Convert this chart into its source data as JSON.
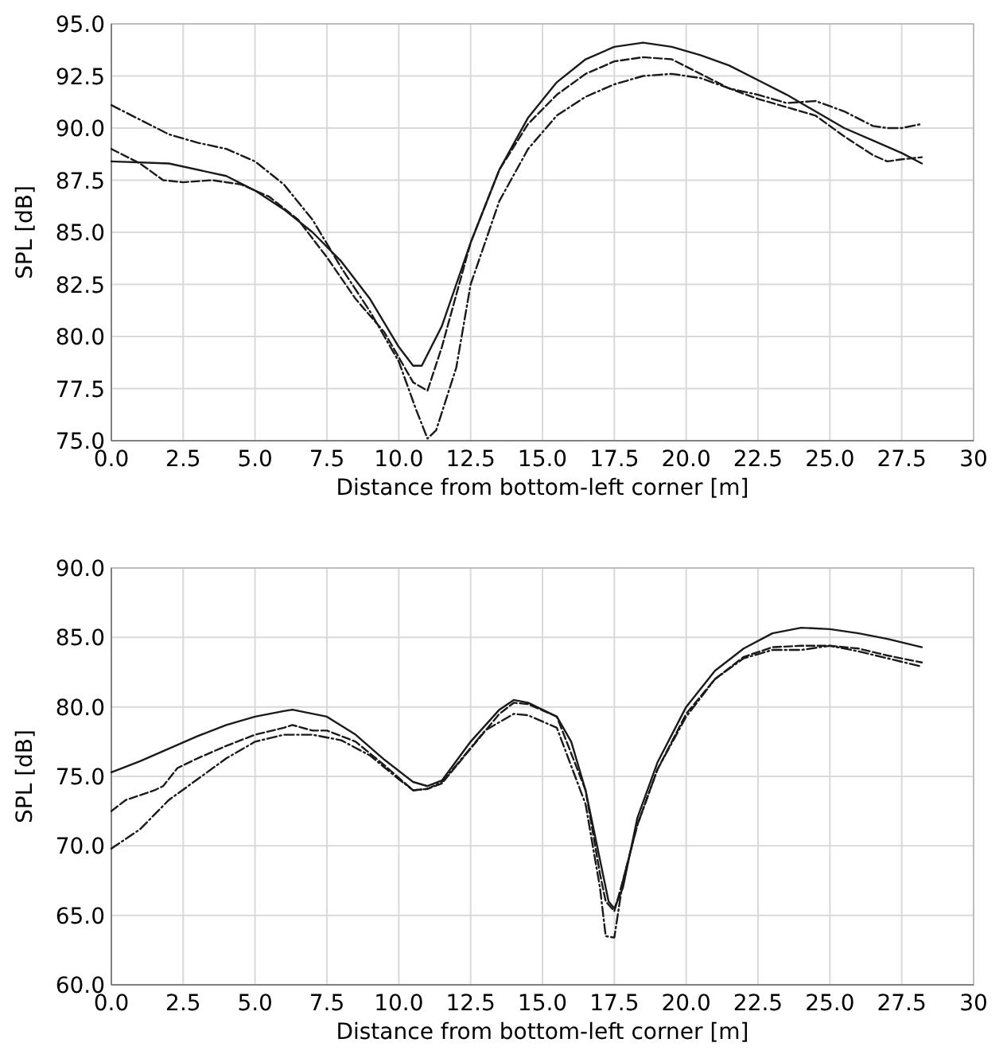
{
  "chart_data": [
    {
      "type": "line",
      "xlabel": "Distance from bottom-left corner [m]",
      "ylabel": "SPL [dB]",
      "xlim": [
        0,
        30
      ],
      "ylim": [
        75,
        95
      ],
      "grid": true,
      "xticks": [
        {
          "value": 0,
          "label": "0.0"
        },
        {
          "value": 2.5,
          "label": "2.5"
        },
        {
          "value": 5,
          "label": "5.0"
        },
        {
          "value": 7.5,
          "label": "7.5"
        },
        {
          "value": 10,
          "label": "10.0"
        },
        {
          "value": 12.5,
          "label": "12.5"
        },
        {
          "value": 15,
          "label": "15.0"
        },
        {
          "value": 17.5,
          "label": "17.5"
        },
        {
          "value": 20,
          "label": "20.0"
        },
        {
          "value": 22.5,
          "label": "22.5"
        },
        {
          "value": 25,
          "label": "25.0"
        },
        {
          "value": 27.5,
          "label": "27.5"
        },
        30
      ],
      "yticks": [
        {
          "value": 75,
          "label": "75.0"
        },
        {
          "value": 77.5,
          "label": "77.5"
        },
        {
          "value": 80,
          "label": "80.0"
        },
        {
          "value": 82.5,
          "label": "82.5"
        },
        {
          "value": 85,
          "label": "85.0"
        },
        {
          "value": 87.5,
          "label": "87.5"
        },
        {
          "value": 90,
          "label": "90.0"
        },
        {
          "value": 92.5,
          "label": "92.5"
        },
        {
          "value": 95,
          "label": "95.0"
        }
      ],
      "series": [
        {
          "color": "#1a1a1a",
          "line_style": "solid",
          "x": [
            0,
            2,
            4,
            5,
            6,
            7,
            8,
            9,
            10,
            10.5,
            10.8,
            11.5,
            12.5,
            13.5,
            14.5,
            15.5,
            16.5,
            17.5,
            18.5,
            19.5,
            20.5,
            21.5,
            22.5,
            23.5,
            24.5,
            25.5,
            26.5,
            27.5,
            28.2
          ],
          "values": [
            88.4,
            88.3,
            87.7,
            87.0,
            86.1,
            85.0,
            83.6,
            81.8,
            79.5,
            78.6,
            78.6,
            80.5,
            84.5,
            88.0,
            90.5,
            92.2,
            93.3,
            93.9,
            94.1,
            93.9,
            93.5,
            93.0,
            92.3,
            91.6,
            90.8,
            90.0,
            89.4,
            88.8,
            88.3
          ]
        },
        {
          "color": "#1a1a1a",
          "line_style": "dashed",
          "x": [
            0,
            1,
            1.8,
            2.5,
            3.5,
            4.5,
            5.5,
            6.5,
            7.5,
            8.5,
            9.5,
            10,
            10.5,
            11,
            11.5,
            12.5,
            13.5,
            14.5,
            15.5,
            16.5,
            17.5,
            18.5,
            19.5,
            20.5,
            21.5,
            22.5,
            23.5,
            24.5,
            25.5,
            26.5,
            27,
            27.5,
            28.2
          ],
          "values": [
            89.0,
            88.3,
            87.5,
            87.4,
            87.5,
            87.3,
            86.7,
            85.6,
            83.8,
            81.8,
            80.2,
            79.0,
            77.8,
            77.4,
            79.5,
            84.5,
            88.0,
            90.2,
            91.6,
            92.6,
            93.2,
            93.4,
            93.3,
            92.6,
            91.9,
            91.4,
            91.0,
            90.6,
            89.6,
            88.7,
            88.4,
            88.5,
            88.6
          ]
        },
        {
          "color": "#1a1a1a",
          "line_style": "dotted",
          "x": [
            0,
            1,
            2,
            3,
            4,
            5,
            6,
            7,
            8,
            9,
            10,
            10.6,
            11,
            11.3,
            12,
            12.5,
            13.5,
            14.5,
            15.5,
            16.5,
            17.5,
            18.5,
            19.5,
            20.5,
            21.5,
            22.5,
            23.5,
            24.5,
            25.5,
            26.5,
            27,
            27.5,
            28.2
          ],
          "values": [
            91.1,
            90.4,
            89.7,
            89.3,
            89.0,
            88.4,
            87.3,
            85.6,
            83.3,
            81.2,
            78.8,
            76.5,
            75.1,
            75.5,
            78.5,
            82.5,
            86.5,
            89.0,
            90.6,
            91.5,
            92.1,
            92.5,
            92.6,
            92.4,
            91.9,
            91.6,
            91.2,
            91.3,
            90.8,
            90.1,
            90.0,
            90.0,
            90.2
          ]
        }
      ]
    },
    {
      "type": "line",
      "xlabel": "Distance from bottom-left corner [m]",
      "ylabel": "SPL [dB]",
      "xlim": [
        0,
        30
      ],
      "ylim": [
        60,
        90
      ],
      "grid": true,
      "xticks": [
        {
          "value": 0,
          "label": "0.0"
        },
        {
          "value": 2.5,
          "label": "2.5"
        },
        {
          "value": 5,
          "label": "5.0"
        },
        {
          "value": 7.5,
          "label": "7.5"
        },
        {
          "value": 10,
          "label": "10.0"
        },
        {
          "value": 12.5,
          "label": "12.5"
        },
        {
          "value": 15,
          "label": "15.0"
        },
        {
          "value": 17.5,
          "label": "17.5"
        },
        {
          "value": 20,
          "label": "20.0"
        },
        {
          "value": 22.5,
          "label": "22.5"
        },
        {
          "value": 25,
          "label": "25.0"
        },
        {
          "value": 27.5,
          "label": "27.5"
        },
        30
      ],
      "yticks": [
        {
          "value": 60,
          "label": "60.0"
        },
        {
          "value": 65,
          "label": "65.0"
        },
        {
          "value": 70,
          "label": "70.0"
        },
        {
          "value": 75,
          "label": "75.0"
        },
        {
          "value": 80,
          "label": "80.0"
        },
        {
          "value": 85,
          "label": "85.0"
        },
        {
          "value": 90,
          "label": "90.0"
        }
      ],
      "series": [
        {
          "color": "#1a1a1a",
          "line_style": "solid",
          "x": [
            0,
            1,
            2,
            3,
            4,
            5,
            6,
            6.3,
            7.5,
            8.5,
            9.5,
            10.5,
            11,
            11.5,
            12.5,
            13.5,
            14,
            14.5,
            15.5,
            16,
            16.5,
            17,
            17.3,
            17.5,
            17.8,
            18.3,
            19,
            20,
            21,
            22,
            23,
            24,
            25,
            26,
            27,
            28.2
          ],
          "values": [
            75.3,
            76.1,
            77.0,
            77.9,
            78.7,
            79.3,
            79.7,
            79.8,
            79.3,
            78.0,
            76.2,
            74.6,
            74.3,
            74.7,
            77.5,
            79.8,
            80.5,
            80.3,
            79.3,
            77.5,
            74.0,
            69.0,
            66.0,
            65.5,
            67.0,
            72.0,
            76.0,
            80.0,
            82.6,
            84.2,
            85.3,
            85.7,
            85.6,
            85.3,
            84.9,
            84.3
          ]
        },
        {
          "color": "#1a1a1a",
          "line_style": "dashed",
          "x": [
            0,
            0.5,
            1.5,
            1.8,
            2.3,
            3,
            4,
            5,
            6,
            6.3,
            7,
            7.5,
            8.5,
            9.5,
            10.5,
            11,
            11.5,
            12.5,
            13.5,
            14,
            14.5,
            15.5,
            16.5,
            17,
            17.2,
            17.5,
            17.8,
            18.3,
            19,
            20,
            21,
            22,
            23,
            24,
            25,
            26,
            27,
            28.2
          ],
          "values": [
            72.5,
            73.3,
            74.0,
            74.3,
            75.6,
            76.3,
            77.2,
            78.0,
            78.5,
            78.7,
            78.3,
            78.3,
            77.5,
            75.8,
            74.0,
            74.1,
            74.5,
            77.0,
            79.5,
            80.3,
            80.2,
            79.3,
            74.0,
            68.0,
            66.0,
            65.3,
            67.5,
            71.5,
            75.5,
            79.5,
            82.0,
            83.6,
            84.3,
            84.4,
            84.4,
            84.2,
            83.7,
            83.2
          ]
        },
        {
          "color": "#1a1a1a",
          "line_style": "dotted",
          "x": [
            0,
            1,
            2,
            3,
            4,
            5,
            6,
            7,
            8,
            9,
            10,
            10.5,
            11,
            11.5,
            12,
            13,
            14,
            14.5,
            15.5,
            16.5,
            17,
            17.2,
            17.5,
            17.8,
            18.3,
            19,
            20,
            21,
            22,
            23,
            24,
            25,
            26,
            27,
            28.2
          ],
          "values": [
            69.8,
            71.2,
            73.3,
            74.8,
            76.3,
            77.5,
            78.0,
            78.0,
            77.6,
            76.5,
            74.8,
            74.0,
            74.1,
            74.6,
            75.8,
            78.3,
            79.5,
            79.4,
            78.5,
            73.0,
            67.0,
            63.5,
            63.4,
            67.5,
            71.5,
            75.5,
            79.3,
            82.0,
            83.5,
            84.1,
            84.1,
            84.4,
            84.0,
            83.5,
            82.9
          ]
        }
      ]
    }
  ]
}
